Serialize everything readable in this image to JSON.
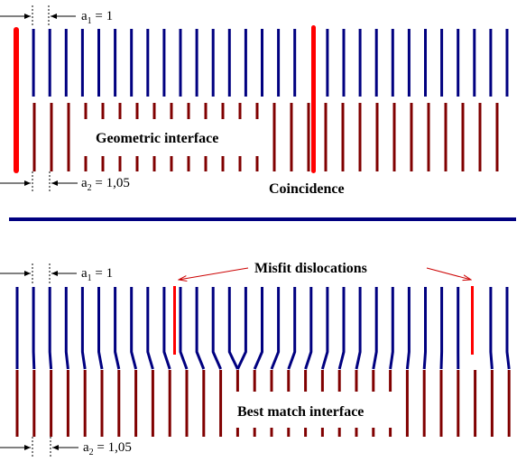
{
  "colors": {
    "top_lattice": "#000080",
    "bottom_lattice": "#800000",
    "highlight": "#ff0000",
    "divider": "#000080",
    "arrow": "#000000"
  },
  "top_panel": {
    "a1_label": "a",
    "a1_sub": "1",
    "a1_value": " = 1",
    "a2_label": "a",
    "a2_sub": "2",
    "a2_value": " = 1,05",
    "interface_label": "Geometric interface",
    "coincidence_label": "Coincidence"
  },
  "bottom_panel": {
    "a1_label": "a",
    "a1_sub": "1",
    "a1_value": " = 1",
    "a2_label": "a",
    "a2_sub": "2",
    "a2_value": " = 1,05",
    "misfit_label": "Misfit dislocations",
    "interface_label": "Best match interface"
  }
}
